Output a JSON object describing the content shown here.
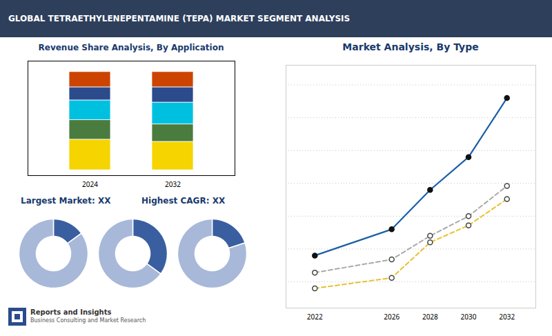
{
  "title": "GLOBAL TETRAETHYLENEPENTAMINE (TEPA) MARKET SEGMENT ANALYSIS",
  "annotations": [
    "Reports and Insights",
    "Business Consulting and Market Research"
  ],
  "chart_data": [
    {
      "type": "bar",
      "title": "Revenue Share Analysis, By Application",
      "stacked": true,
      "categories": [
        "2024",
        "2032"
      ],
      "series": [
        {
          "color": "#f5d400",
          "values": [
            28,
            26
          ]
        },
        {
          "color": "#4a7c3f",
          "values": [
            18,
            16
          ]
        },
        {
          "color": "#00c0e0",
          "values": [
            18,
            20
          ]
        },
        {
          "color": "#2b4b8c",
          "values": [
            12,
            14
          ]
        },
        {
          "color": "#cc4400",
          "values": [
            14,
            14
          ]
        }
      ],
      "ylim": [
        -5,
        100
      ],
      "tick_labels": "x",
      "annotations": [
        "Largest Market: XX",
        "Highest CAGR: XX"
      ]
    },
    {
      "type": "pie",
      "values": [
        15,
        85
      ],
      "colors": [
        "#3a5fa0",
        "#a8b8d8"
      ]
    },
    {
      "type": "pie",
      "values": [
        35,
        65
      ],
      "colors": [
        "#3a5fa0",
        "#a8b8d8"
      ]
    },
    {
      "type": "pie",
      "values": [
        20,
        80
      ],
      "colors": [
        "#3a5fa0",
        "#a8b8d8"
      ]
    },
    {
      "type": "line",
      "title": "Market Analysis, By Type",
      "x": [
        2022,
        2026,
        2028,
        2030,
        2032
      ],
      "series": [
        {
          "color": "#1a5fa8",
          "line_style": "solid",
          "marker": "circle",
          "values": [
            4.5,
            6.5,
            9.5,
            12.0,
            16.5
          ]
        },
        {
          "color": "#aaaaaa",
          "line_style": "dashed",
          "marker": "circle",
          "values": [
            3.2,
            4.2,
            6.0,
            7.5,
            9.8
          ]
        },
        {
          "color": "#e8c030",
          "line_style": "dashed",
          "marker": "circle",
          "values": [
            2.0,
            2.8,
            5.5,
            6.8,
            8.8
          ]
        }
      ],
      "xlim": [
        2020.5,
        2033.5
      ],
      "xticks": [
        2022,
        2026,
        2028,
        2030,
        2032
      ],
      "ylim": [
        0.5,
        19
      ],
      "yticks": [
        2.5,
        5,
        7.5,
        10,
        12.5,
        15,
        17.5
      ],
      "grid": true,
      "tick_labels": "x"
    }
  ]
}
